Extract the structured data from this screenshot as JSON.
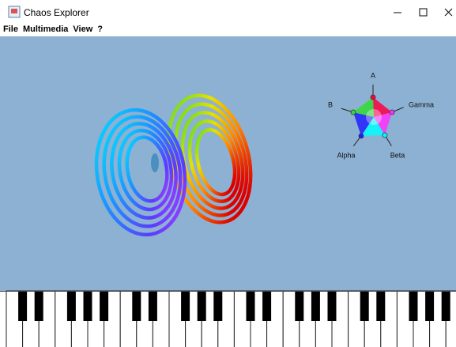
{
  "window": {
    "title": "Chaos Explorer"
  },
  "menu": [
    "File",
    "Multimedia",
    "View",
    "?"
  ],
  "widget": {
    "labels": {
      "a": "A",
      "b": "B",
      "gamma": "Gamma",
      "alpha": "Alpha",
      "beta": "Beta"
    }
  }
}
